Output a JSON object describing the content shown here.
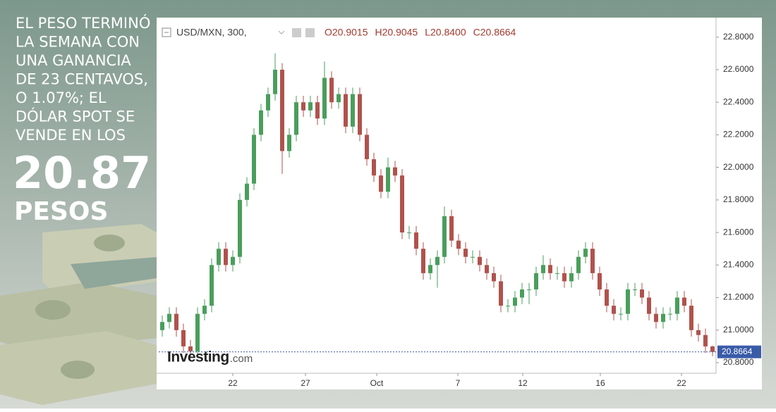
{
  "infographic": {
    "headline_lines": [
      "EL PESO TERMINÓ",
      "LA SEMANA CON",
      "UNA GANANCIA",
      "DE 23 CENTAVOS,",
      "O 1.07%; EL",
      "DÓLAR SPOT SE",
      "VENDE EN LOS"
    ],
    "big_number": "20.87",
    "big_unit": "PESOS"
  },
  "chart_data": {
    "type": "candlestick",
    "symbol": "USD/MXN, 300,",
    "ohlc_labels": [
      "O20.9015",
      "H20.9045",
      "L20.8400",
      "C20.8664"
    ],
    "watermark": "Investing",
    "watermark_suffix": ".com",
    "last_price": 20.8664,
    "up_color": "#4a9e5c",
    "down_color": "#b0524c",
    "open": [
      21.0,
      21.05,
      21.1,
      21.0,
      20.9,
      20.87,
      21.1,
      21.15,
      21.4,
      21.5,
      21.4,
      21.45,
      21.8,
      21.9,
      22.2,
      22.35,
      22.45,
      22.6,
      22.1,
      22.2,
      22.4,
      22.35,
      22.4,
      22.3,
      22.55,
      22.4,
      22.45,
      22.25,
      22.45,
      22.2,
      22.05,
      21.95,
      21.85,
      22.0,
      21.95,
      21.6,
      21.6,
      21.5,
      21.35,
      21.4,
      21.45,
      21.7,
      21.55,
      21.5,
      21.45,
      21.45,
      21.4,
      21.35,
      21.3,
      21.15,
      21.15,
      21.2,
      21.25,
      21.25,
      21.35,
      21.4,
      21.35,
      21.35,
      21.3,
      21.35,
      21.45,
      21.5,
      21.35,
      21.25,
      21.15,
      21.1,
      21.1,
      21.25,
      21.25,
      21.2,
      21.1,
      21.05,
      21.1,
      21.1,
      21.2,
      21.15,
      21.0,
      20.97,
      20.9
    ],
    "high": [
      21.09,
      21.14,
      21.14,
      21.04,
      20.94,
      21.14,
      21.19,
      21.44,
      21.54,
      21.54,
      21.49,
      21.84,
      21.94,
      22.24,
      22.39,
      22.49,
      22.7,
      22.64,
      22.24,
      22.44,
      22.44,
      22.44,
      22.44,
      22.65,
      22.59,
      22.49,
      22.49,
      22.49,
      22.49,
      22.24,
      22.09,
      21.99,
      22.06,
      22.04,
      21.99,
      21.64,
      21.64,
      21.54,
      21.44,
      21.49,
      21.76,
      21.74,
      21.59,
      21.54,
      21.49,
      21.49,
      21.44,
      21.39,
      21.34,
      21.19,
      21.24,
      21.29,
      21.29,
      21.39,
      21.46,
      21.44,
      21.39,
      21.39,
      21.39,
      21.49,
      21.54,
      21.54,
      21.39,
      21.29,
      21.19,
      21.14,
      21.29,
      21.29,
      21.29,
      21.24,
      21.14,
      21.14,
      21.14,
      21.24,
      21.24,
      21.19,
      21.04,
      21.01,
      20.9045
    ],
    "low": [
      20.96,
      21.01,
      20.96,
      20.86,
      20.83,
      20.83,
      21.06,
      21.11,
      21.36,
      21.36,
      21.36,
      21.41,
      21.76,
      21.86,
      22.16,
      22.31,
      22.41,
      21.96,
      22.06,
      22.16,
      22.31,
      22.31,
      22.26,
      22.26,
      22.36,
      22.36,
      22.21,
      22.21,
      22.16,
      22.01,
      21.91,
      21.81,
      21.81,
      21.91,
      21.56,
      21.56,
      21.46,
      21.31,
      21.31,
      21.26,
      21.41,
      21.51,
      21.46,
      21.41,
      21.41,
      21.36,
      21.31,
      21.26,
      21.11,
      21.11,
      21.11,
      21.16,
      21.16,
      21.21,
      21.31,
      21.31,
      21.31,
      21.26,
      21.26,
      21.31,
      21.41,
      21.31,
      21.21,
      21.11,
      21.06,
      21.06,
      21.06,
      21.21,
      21.16,
      21.06,
      21.01,
      21.01,
      21.06,
      21.06,
      21.11,
      20.96,
      20.93,
      20.86,
      20.84
    ],
    "close": [
      21.05,
      21.1,
      21.0,
      20.9,
      20.87,
      21.1,
      21.15,
      21.4,
      21.5,
      21.4,
      21.45,
      21.8,
      21.9,
      22.2,
      22.35,
      22.45,
      22.6,
      22.1,
      22.2,
      22.4,
      22.35,
      22.4,
      22.3,
      22.55,
      22.4,
      22.45,
      22.25,
      22.45,
      22.2,
      22.05,
      21.95,
      21.85,
      22.0,
      21.95,
      21.6,
      21.6,
      21.5,
      21.35,
      21.4,
      21.45,
      21.7,
      21.55,
      21.5,
      21.45,
      21.45,
      21.4,
      21.35,
      21.3,
      21.15,
      21.15,
      21.2,
      21.25,
      21.25,
      21.35,
      21.4,
      21.35,
      21.35,
      21.3,
      21.35,
      21.45,
      21.5,
      21.35,
      21.25,
      21.15,
      21.1,
      21.1,
      21.25,
      21.25,
      21.2,
      21.1,
      21.05,
      21.1,
      21.1,
      21.2,
      21.15,
      21.0,
      20.97,
      20.9,
      20.8664
    ],
    "xlim": [
      -0.5,
      78.5
    ],
    "xticks": [
      {
        "value": 10,
        "label": "22"
      },
      {
        "value": 20.3,
        "label": "27"
      },
      {
        "value": 30.4,
        "label": "Oct"
      },
      {
        "value": 41.9,
        "label": "7"
      },
      {
        "value": 51.1,
        "label": "12"
      },
      {
        "value": 62.1,
        "label": "16"
      },
      {
        "value": 73.6,
        "label": "22"
      }
    ],
    "ylim": [
      20.735,
      22.92
    ],
    "yticks": [
      {
        "value": 20.8,
        "label": "20.8000"
      },
      {
        "value": 21.0,
        "label": "21.0000"
      },
      {
        "value": 21.2,
        "label": "21.2000"
      },
      {
        "value": 21.4,
        "label": "21.4000"
      },
      {
        "value": 21.6,
        "label": "21.6000"
      },
      {
        "value": 21.8,
        "label": "21.8000"
      },
      {
        "value": 22.0,
        "label": "22.0000"
      },
      {
        "value": 22.2,
        "label": "22.2000"
      },
      {
        "value": 22.4,
        "label": "22.4000"
      },
      {
        "value": 22.6,
        "label": "22.6000"
      },
      {
        "value": 22.8,
        "label": "22.8000"
      }
    ]
  }
}
